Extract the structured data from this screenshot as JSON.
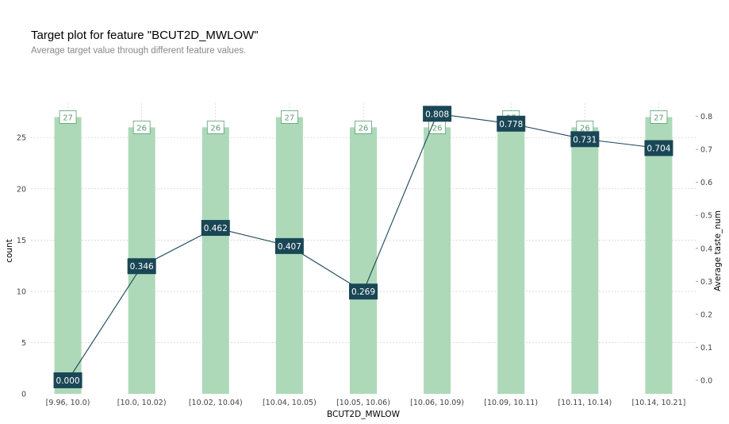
{
  "chart_data": {
    "type": "bar",
    "title": "Target plot for feature \"BCUT2D_MWLOW\"",
    "subtitle": "Average target value through different feature values.",
    "xlabel": "BCUT2D_MWLOW",
    "ylabel": "count",
    "ylabel_right": "Average taste_num",
    "categories": [
      "[9.96, 10.0)",
      "[10.0, 10.02)",
      "[10.02, 10.04)",
      "[10.04, 10.05)",
      "[10.05, 10.06)",
      "[10.06, 10.09)",
      "[10.09, 10.11)",
      "[10.11, 10.14)",
      "[10.14, 10.21]"
    ],
    "series": [
      {
        "name": "count",
        "type": "bar",
        "axis": "left",
        "values": [
          27,
          26,
          26,
          27,
          26,
          26,
          27,
          26,
          27
        ]
      },
      {
        "name": "Average taste_num",
        "type": "line",
        "axis": "right",
        "values": [
          0.0,
          0.346,
          0.462,
          0.407,
          0.269,
          0.808,
          0.778,
          0.731,
          0.704
        ]
      }
    ],
    "count_labels": [
      "27",
      "26",
      "26",
      "27",
      "26",
      "26",
      "27",
      "26",
      "27"
    ],
    "value_labels": [
      "0.000",
      "0.346",
      "0.462",
      "0.407",
      "0.269",
      "0.808",
      "0.778",
      "0.731",
      "0.704"
    ],
    "ylim": [
      0,
      28.35
    ],
    "ylim_right": [
      -0.041,
      0.84
    ],
    "yticks": [
      "0",
      "5",
      "10",
      "15",
      "20",
      "25"
    ],
    "yticks_right": [
      "0.0",
      "0.1",
      "0.2",
      "0.3",
      "0.4",
      "0.5",
      "0.6",
      "0.7",
      "0.8"
    ],
    "grid": true,
    "colors": {
      "bar": "#add9b9",
      "bar_label": "#5a9e6f",
      "line": "#1a4756",
      "grid": "#c8c8c8"
    }
  }
}
